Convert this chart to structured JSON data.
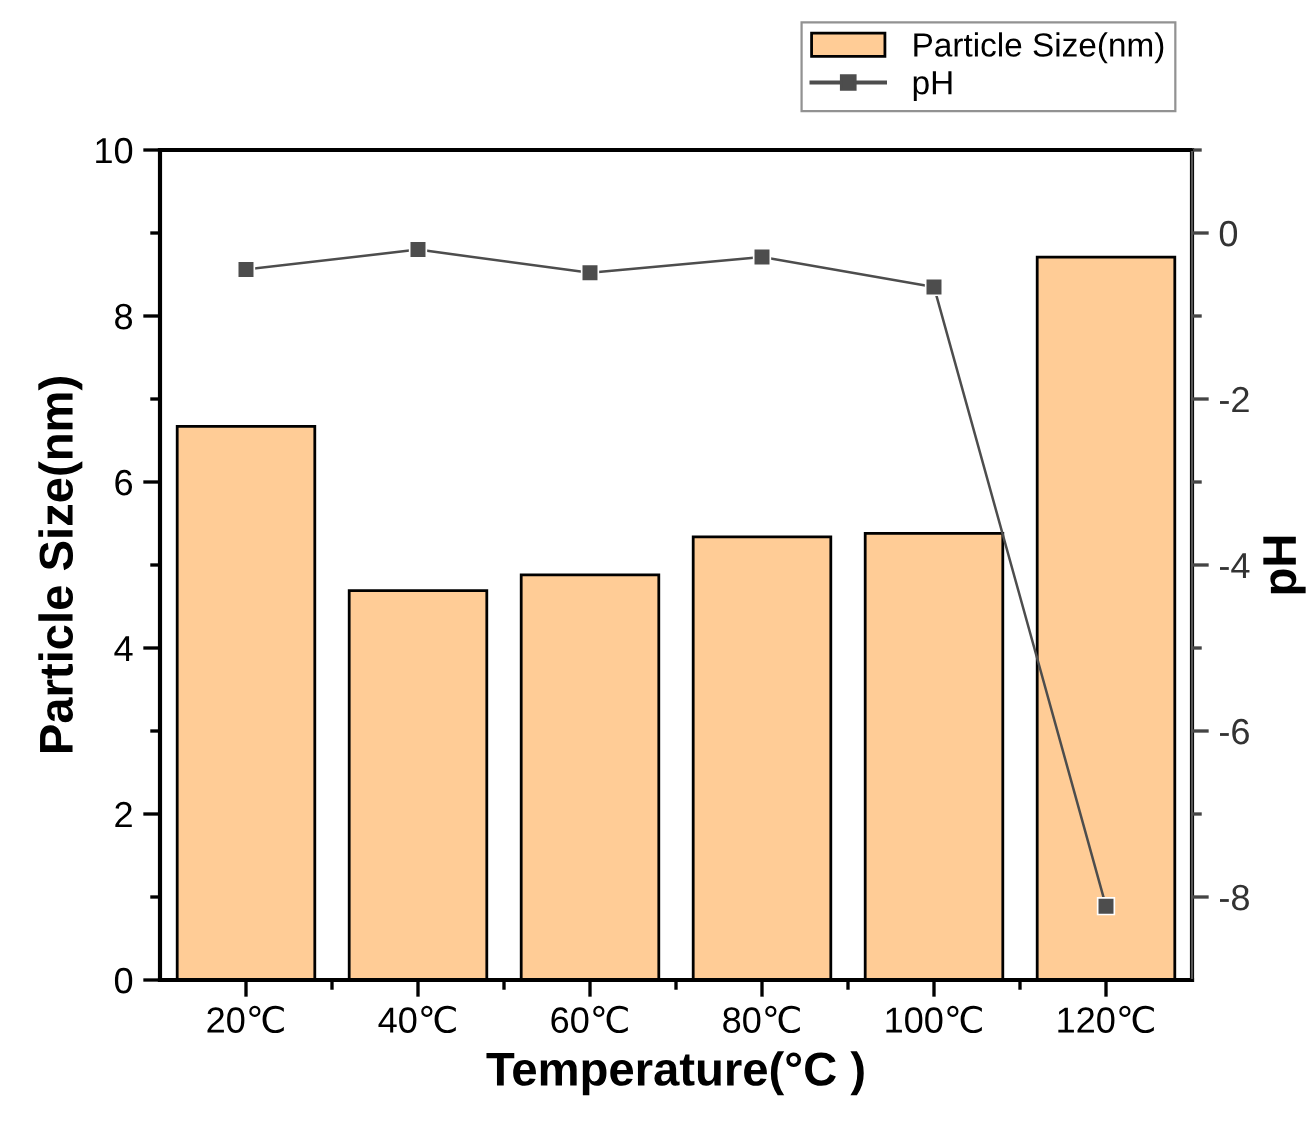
{
  "chart_data": {
    "type": "bar",
    "xlabel": "Temperature(°C )",
    "ylabel": "Particle Size(nm)",
    "y2label": "pH",
    "categories": [
      "20℃",
      "40℃",
      "60℃",
      "80℃",
      "100℃",
      "120℃"
    ],
    "series": [
      {
        "name": "Particle Size(nm)",
        "color": "#ffcc96",
        "values": [
          6.67,
          4.69,
          4.88,
          5.34,
          5.38,
          8.71
        ]
      },
      {
        "name": "pH",
        "type": "line",
        "axis": "y2",
        "color": "#4d4d4d",
        "marker": "square",
        "line_style": "solid",
        "values": [
          -0.44,
          -0.2,
          -0.48,
          -0.29,
          -0.65,
          -8.11
        ]
      }
    ],
    "ylim": [
      0,
      10
    ],
    "yticks": [
      0,
      2,
      4,
      6,
      8,
      10
    ],
    "y2lim": [
      -9,
      1
    ],
    "y2ticks": [
      -8,
      -6,
      -4,
      -2,
      0
    ],
    "legend": "top right",
    "grid": false
  }
}
